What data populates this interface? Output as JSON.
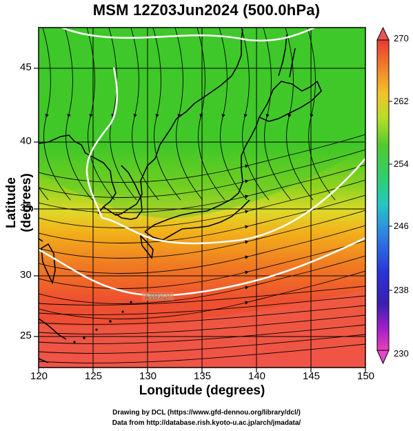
{
  "title": "MSM 12Z03Jun2024 (500.0hPa)",
  "axes": {
    "xlabel": "Longitude (degrees)",
    "ylabel": "Latitude  (degrees)",
    "x_ticks": [
      "120",
      "125",
      "130",
      "135",
      "140",
      "145",
      "150"
    ],
    "y_ticks": [
      "25",
      "30",
      "35",
      "40",
      "45"
    ]
  },
  "colorbar": {
    "ticks": [
      "270",
      "262",
      "254",
      "246",
      "238",
      "230"
    ]
  },
  "contour_label": "5880.0",
  "credits": {
    "line1": "Drawing by DCL (https://www.gfd-dennou.org/library/dcl/)",
    "line2": "Data from http://database.rish.kyoto-u.ac.jp/arch/jmadata/"
  },
  "chart_data": {
    "type": "heatmap",
    "variable": "temperature (K) with streamlines and geopotential height contours",
    "xlim": [
      120,
      150
    ],
    "ylim": [
      22.5,
      47.5
    ],
    "colorbar_range": [
      230,
      270
    ],
    "contours": [
      {
        "label": "5880.0",
        "approx_path_lon_lat": [
          [
            120,
            31.3
          ],
          [
            124,
            29.5
          ],
          [
            128,
            27.8
          ],
          [
            132,
            27.5
          ],
          [
            136,
            28.3
          ],
          [
            140,
            29.2
          ],
          [
            145,
            30.4
          ],
          [
            150,
            32
          ]
        ]
      },
      {
        "approx_path_lon_lat": [
          [
            126.5,
            35
          ],
          [
            128,
            34.2
          ],
          [
            130,
            33.2
          ],
          [
            133,
            32.6
          ],
          [
            137,
            32.9
          ],
          [
            141,
            34.2
          ],
          [
            145,
            36.3
          ],
          [
            150,
            39
          ]
        ]
      },
      {
        "approx_path_lon_lat": [
          [
            127,
            44
          ],
          [
            127.5,
            42
          ],
          [
            126.3,
            40
          ],
          [
            125.5,
            38
          ],
          [
            126,
            36.3
          ],
          [
            126.5,
            35
          ]
        ]
      },
      {
        "approx_path_lon_lat": [
          [
            122,
            47.5
          ],
          [
            127,
            47
          ],
          [
            132,
            46.6
          ],
          [
            136,
            46.8
          ],
          [
            141,
            47.5
          ]
        ]
      }
    ],
    "temperature_pattern": [
      {
        "region": "north (lat > 38)",
        "approx_K": 256
      },
      {
        "region": "lat 35",
        "approx_K": 262
      },
      {
        "region": "lat 32",
        "approx_K": 264
      },
      {
        "region": "lat 28",
        "approx_K": 267
      },
      {
        "region": "south (lat < 25)",
        "approx_K": 269
      }
    ]
  }
}
